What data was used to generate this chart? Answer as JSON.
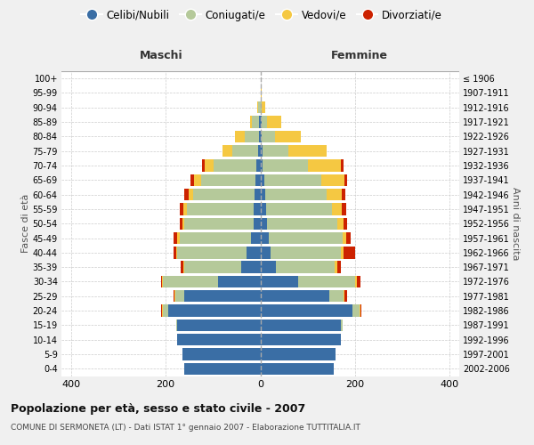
{
  "age_groups": [
    "0-4",
    "5-9",
    "10-14",
    "15-19",
    "20-24",
    "25-29",
    "30-34",
    "35-39",
    "40-44",
    "45-49",
    "50-54",
    "55-59",
    "60-64",
    "65-69",
    "70-74",
    "75-79",
    "80-84",
    "85-89",
    "90-94",
    "95-99",
    "100+"
  ],
  "birth_years": [
    "2002-2006",
    "1997-2001",
    "1992-1996",
    "1987-1991",
    "1982-1986",
    "1977-1981",
    "1972-1976",
    "1967-1971",
    "1962-1966",
    "1957-1961",
    "1952-1956",
    "1947-1951",
    "1942-1946",
    "1937-1941",
    "1932-1936",
    "1927-1931",
    "1922-1926",
    "1917-1921",
    "1912-1916",
    "1907-1911",
    "≤ 1906"
  ],
  "males": {
    "single": [
      160,
      165,
      175,
      175,
      195,
      160,
      90,
      40,
      30,
      20,
      15,
      15,
      12,
      10,
      8,
      5,
      3,
      2,
      0,
      0,
      0
    ],
    "married": [
      0,
      0,
      0,
      2,
      10,
      20,
      115,
      120,
      145,
      150,
      145,
      140,
      130,
      115,
      90,
      55,
      30,
      15,
      5,
      0,
      0
    ],
    "widowed": [
      0,
      0,
      0,
      0,
      2,
      2,
      2,
      3,
      3,
      5,
      5,
      8,
      10,
      15,
      20,
      20,
      20,
      5,
      2,
      0,
      0
    ],
    "divorced": [
      0,
      0,
      0,
      0,
      2,
      2,
      3,
      5,
      5,
      8,
      5,
      8,
      8,
      8,
      5,
      0,
      0,
      0,
      0,
      0,
      0
    ]
  },
  "females": {
    "single": [
      155,
      158,
      170,
      170,
      195,
      145,
      80,
      32,
      22,
      18,
      15,
      12,
      10,
      8,
      5,
      5,
      3,
      2,
      0,
      0,
      0
    ],
    "married": [
      0,
      0,
      0,
      3,
      15,
      30,
      120,
      125,
      148,
      155,
      148,
      140,
      130,
      120,
      95,
      55,
      28,
      12,
      3,
      0,
      0
    ],
    "widowed": [
      0,
      0,
      0,
      0,
      2,
      3,
      3,
      5,
      5,
      8,
      12,
      20,
      32,
      50,
      70,
      80,
      55,
      30,
      8,
      2,
      0
    ],
    "divorced": [
      0,
      0,
      0,
      0,
      2,
      5,
      8,
      8,
      25,
      10,
      8,
      10,
      8,
      5,
      5,
      0,
      0,
      0,
      0,
      0,
      0
    ]
  },
  "colors": {
    "single": "#3a6ea5",
    "married": "#b5c99a",
    "widowed": "#f5c842",
    "divorced": "#cc2200"
  },
  "xlim": 420,
  "title": "Popolazione per età, sesso e stato civile - 2007",
  "subtitle": "COMUNE DI SERMONETA (LT) - Dati ISTAT 1° gennaio 2007 - Elaborazione TUTTITALIA.IT",
  "ylabel_left": "Fasce di età",
  "ylabel_right": "Anni di nascita",
  "xlabel_maschi": "Maschi",
  "xlabel_femmine": "Femmine",
  "legend_labels": [
    "Celibi/Nubili",
    "Coniugati/e",
    "Vedovi/e",
    "Divorziati/e"
  ],
  "bg_color": "#f0f0f0",
  "plot_bg": "#ffffff"
}
